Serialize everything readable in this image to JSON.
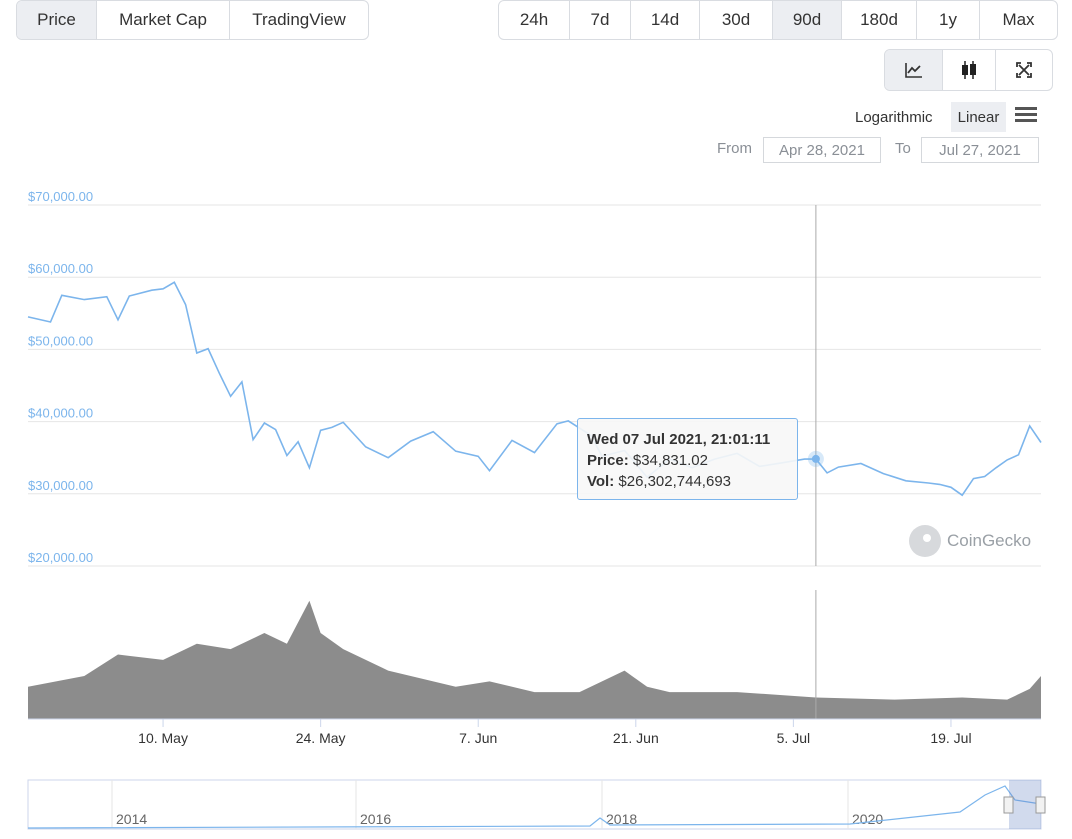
{
  "metric_tabs": [
    {
      "label": "Price",
      "active": true
    },
    {
      "label": "Market Cap",
      "active": false
    },
    {
      "label": "TradingView",
      "active": false
    }
  ],
  "range_tabs": [
    {
      "label": "24h",
      "active": false
    },
    {
      "label": "7d",
      "active": false
    },
    {
      "label": "14d",
      "active": false
    },
    {
      "label": "30d",
      "active": false
    },
    {
      "label": "90d",
      "active": true
    },
    {
      "label": "180d",
      "active": false
    },
    {
      "label": "1y",
      "active": false
    },
    {
      "label": "Max",
      "active": false
    }
  ],
  "chart_type_buttons": [
    {
      "icon": "line-chart-icon",
      "active": true
    },
    {
      "icon": "candlestick-icon",
      "active": false
    },
    {
      "icon": "fullscreen-icon",
      "active": false
    }
  ],
  "scale": {
    "logarithmic": "Logarithmic",
    "linear": "Linear",
    "active": "Linear",
    "menu_icon": "hamburger-menu-icon"
  },
  "date_range": {
    "from_label": "From",
    "from_value": "Apr 28, 2021",
    "to_label": "To",
    "to_value": "Jul 27, 2021"
  },
  "tooltip": {
    "date": "Wed 07 Jul 2021, 21:01:11",
    "price_label": "Price:",
    "price_value": "$34,831.02",
    "vol_label": "Vol:",
    "vol_value": "$26,302,744,693"
  },
  "watermark": "CoinGecko",
  "colors": {
    "line": "#7cb5ec",
    "volume": "#8c8c8c",
    "axis_label": "#7cb5ec",
    "navigator_fill": "#e6ebf5"
  },
  "chart_data": {
    "type": "line",
    "title": "",
    "y_ticks": [
      "$20,000.00",
      "$30,000.00",
      "$40,000.00",
      "$50,000.00",
      "$60,000.00",
      "$70,000.00"
    ],
    "ylim": [
      20000,
      70000
    ],
    "x_ticks": [
      {
        "label": "10. May",
        "date": "2021-05-10"
      },
      {
        "label": "24. May",
        "date": "2021-05-24"
      },
      {
        "label": "7. Jun",
        "date": "2021-06-07"
      },
      {
        "label": "21. Jun",
        "date": "2021-06-21"
      },
      {
        "label": "5. Jul",
        "date": "2021-07-05"
      },
      {
        "label": "19. Jul",
        "date": "2021-07-19"
      }
    ],
    "xlim": [
      "2021-04-28",
      "2021-07-27"
    ],
    "series": [
      {
        "x": [
          "2021-04-28",
          "2021-04-30",
          "2021-05-01",
          "2021-05-03",
          "2021-05-05",
          "2021-05-06",
          "2021-05-07",
          "2021-05-09",
          "2021-05-10",
          "2021-05-11",
          "2021-05-12",
          "2021-05-13",
          "2021-05-14",
          "2021-05-15",
          "2021-05-16",
          "2021-05-17",
          "2021-05-18",
          "2021-05-19",
          "2021-05-20",
          "2021-05-21",
          "2021-05-22",
          "2021-05-23",
          "2021-05-24",
          "2021-05-25",
          "2021-05-26",
          "2021-05-28",
          "2021-05-30",
          "2021-06-01",
          "2021-06-03",
          "2021-06-05",
          "2021-06-07",
          "2021-06-08",
          "2021-06-10",
          "2021-06-12",
          "2021-06-14",
          "2021-06-15",
          "2021-06-17",
          "2021-06-18",
          "2021-06-20",
          "2021-06-21",
          "2021-06-22",
          "2021-06-24",
          "2021-06-26",
          "2021-06-28",
          "2021-06-30",
          "2021-07-02",
          "2021-07-04",
          "2021-07-06",
          "2021-07-07",
          "2021-07-08",
          "2021-07-09",
          "2021-07-11",
          "2021-07-13",
          "2021-07-15",
          "2021-07-17",
          "2021-07-18",
          "2021-07-19",
          "2021-07-20",
          "2021-07-21",
          "2021-07-22",
          "2021-07-23",
          "2021-07-24",
          "2021-07-25",
          "2021-07-26",
          "2021-07-27"
        ],
        "y": [
          54500,
          53800,
          57500,
          56900,
          57300,
          54100,
          57400,
          58200,
          58400,
          59300,
          56200,
          49500,
          50100,
          46700,
          43500,
          45500,
          37500,
          39800,
          38900,
          35300,
          37200,
          33600,
          38800,
          39200,
          39900,
          36500,
          35000,
          37300,
          38600,
          35900,
          35200,
          33200,
          37400,
          35700,
          39700,
          40100,
          38100,
          35200,
          36000,
          34200,
          32300,
          34800,
          33600,
          34800,
          35600,
          33800,
          34300,
          34800,
          34800,
          32900,
          33700,
          34200,
          32800,
          31800,
          31500,
          31300,
          30900,
          29800,
          32100,
          32400,
          33600,
          34700,
          35400,
          39400,
          37100
        ]
      }
    ],
    "volume": {
      "unit": "USD",
      "x": [
        "2021-04-28",
        "2021-05-03",
        "2021-05-06",
        "2021-05-10",
        "2021-05-12",
        "2021-05-13",
        "2021-05-16",
        "2021-05-19",
        "2021-05-21",
        "2021-05-23",
        "2021-05-24",
        "2021-05-26",
        "2021-05-30",
        "2021-06-05",
        "2021-06-08",
        "2021-06-12",
        "2021-06-16",
        "2021-06-20",
        "2021-06-22",
        "2021-06-24",
        "2021-06-30",
        "2021-07-07",
        "2021-07-14",
        "2021-07-20",
        "2021-07-24",
        "2021-07-26",
        "2021-07-27"
      ],
      "values": [
        30,
        40,
        60,
        55,
        65,
        70,
        65,
        80,
        70,
        110,
        80,
        65,
        45,
        30,
        35,
        25,
        25,
        45,
        30,
        25,
        25,
        20,
        18,
        20,
        18,
        28,
        40
      ]
    }
  },
  "navigator": {
    "year_labels": [
      "2014",
      "2016",
      "2018",
      "2020"
    ]
  }
}
